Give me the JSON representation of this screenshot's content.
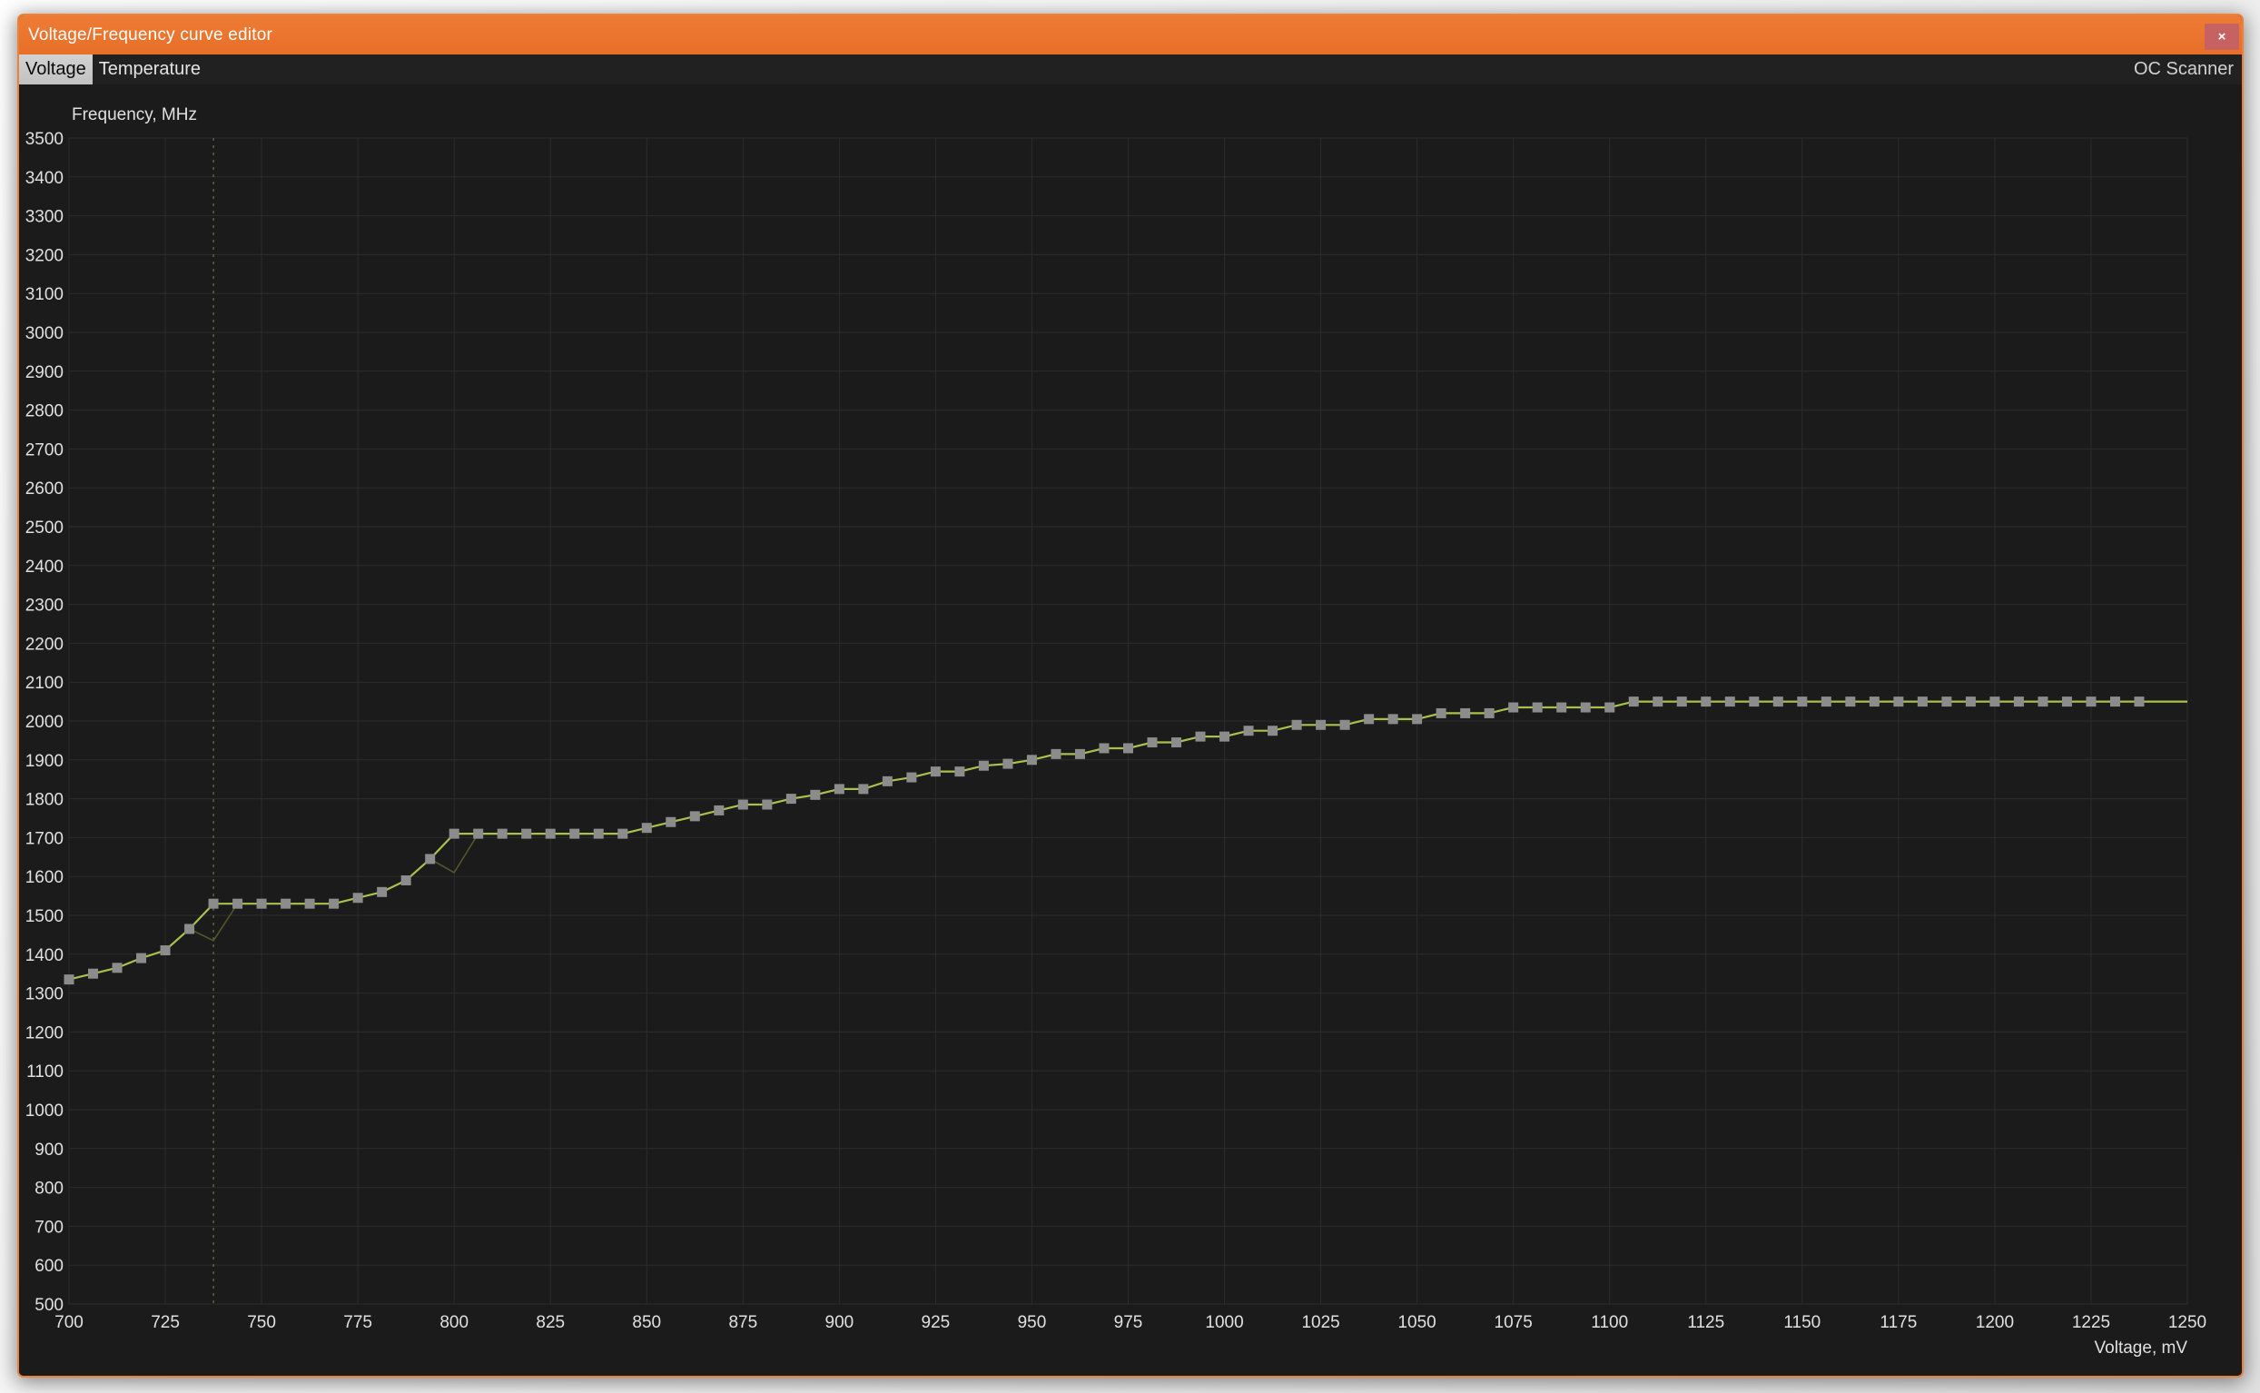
{
  "window": {
    "title": "Voltage/Frequency curve editor",
    "close_glyph": "×"
  },
  "tabs": {
    "items": [
      {
        "label": "Voltage",
        "selected": true
      },
      {
        "label": "Temperature",
        "selected": false
      }
    ],
    "right_label": "OC Scanner"
  },
  "colors": {
    "titlebar": "#e9732f",
    "window_border": "#e8823c",
    "close_button": "#c76262",
    "chart_background": "#1b1b1b",
    "grid": "#2c2c2c",
    "tick_text": "#e0e0e0",
    "curve": "#a6c24c",
    "marker": "#8c8c8c",
    "stock_curve": "#52562a",
    "current_voltage_line": "#6a6d3c",
    "tab_selected_bg": "#cccccc",
    "tabstrip_bg": "#212121"
  },
  "chart_data": {
    "type": "line",
    "xlabel": "Voltage, mV",
    "ylabel": "Frequency, MHz",
    "xlim": [
      700,
      1250
    ],
    "ylim": [
      500,
      3500
    ],
    "x_ticks": [
      700,
      725,
      750,
      775,
      800,
      825,
      850,
      875,
      900,
      925,
      950,
      975,
      1000,
      1025,
      1050,
      1075,
      1100,
      1125,
      1150,
      1175,
      1200,
      1225,
      1250
    ],
    "y_ticks": [
      500,
      600,
      700,
      800,
      900,
      1000,
      1100,
      1200,
      1300,
      1400,
      1500,
      1600,
      1700,
      1800,
      1900,
      2000,
      2100,
      2200,
      2300,
      2400,
      2500,
      2600,
      2700,
      2800,
      2900,
      3000,
      3100,
      3200,
      3300,
      3400,
      3500
    ],
    "grid": true,
    "legend": "none",
    "current_voltage_marker_mV": 737.5,
    "series": [
      {
        "name": "vf_curve",
        "style": "line_with_square_markers",
        "points": [
          [
            700,
            1335
          ],
          [
            706.25,
            1350
          ],
          [
            712.5,
            1365
          ],
          [
            718.75,
            1390
          ],
          [
            725,
            1410
          ],
          [
            731.25,
            1465
          ],
          [
            737.5,
            1530
          ],
          [
            743.75,
            1530
          ],
          [
            750,
            1530
          ],
          [
            756.25,
            1530
          ],
          [
            762.5,
            1530
          ],
          [
            768.75,
            1530
          ],
          [
            775,
            1545
          ],
          [
            781.25,
            1560
          ],
          [
            787.5,
            1590
          ],
          [
            793.75,
            1645
          ],
          [
            800,
            1710
          ],
          [
            806.25,
            1710
          ],
          [
            812.5,
            1710
          ],
          [
            818.75,
            1710
          ],
          [
            825,
            1710
          ],
          [
            831.25,
            1710
          ],
          [
            837.5,
            1710
          ],
          [
            843.75,
            1710
          ],
          [
            850,
            1725
          ],
          [
            856.25,
            1740
          ],
          [
            862.5,
            1755
          ],
          [
            868.75,
            1770
          ],
          [
            875,
            1785
          ],
          [
            881.25,
            1785
          ],
          [
            887.5,
            1800
          ],
          [
            893.75,
            1810
          ],
          [
            900,
            1825
          ],
          [
            906.25,
            1825
          ],
          [
            912.5,
            1845
          ],
          [
            918.75,
            1855
          ],
          [
            925,
            1870
          ],
          [
            931.25,
            1870
          ],
          [
            937.5,
            1885
          ],
          [
            943.75,
            1890
          ],
          [
            950,
            1900
          ],
          [
            956.25,
            1915
          ],
          [
            962.5,
            1915
          ],
          [
            968.75,
            1930
          ],
          [
            975,
            1930
          ],
          [
            981.25,
            1945
          ],
          [
            987.5,
            1945
          ],
          [
            993.75,
            1960
          ],
          [
            1000,
            1960
          ],
          [
            1006.25,
            1975
          ],
          [
            1012.5,
            1975
          ],
          [
            1018.75,
            1990
          ],
          [
            1025,
            1990
          ],
          [
            1031.25,
            1990
          ],
          [
            1037.5,
            2005
          ],
          [
            1043.75,
            2005
          ],
          [
            1050,
            2005
          ],
          [
            1056.25,
            2020
          ],
          [
            1062.5,
            2020
          ],
          [
            1068.75,
            2020
          ],
          [
            1075,
            2035
          ],
          [
            1081.25,
            2035
          ],
          [
            1087.5,
            2035
          ],
          [
            1093.75,
            2035
          ],
          [
            1100,
            2035
          ],
          [
            1106.25,
            2050
          ],
          [
            1112.5,
            2050
          ],
          [
            1118.75,
            2050
          ],
          [
            1125,
            2050
          ],
          [
            1131.25,
            2050
          ],
          [
            1137.5,
            2050
          ],
          [
            1143.75,
            2050
          ],
          [
            1150,
            2050
          ],
          [
            1156.25,
            2050
          ],
          [
            1162.5,
            2050
          ],
          [
            1168.75,
            2050
          ],
          [
            1175,
            2050
          ],
          [
            1181.25,
            2050
          ],
          [
            1187.5,
            2050
          ],
          [
            1193.75,
            2050
          ],
          [
            1200,
            2050
          ],
          [
            1206.25,
            2050
          ],
          [
            1212.5,
            2050
          ],
          [
            1218.75,
            2050
          ],
          [
            1225,
            2050
          ],
          [
            1231.25,
            2050
          ],
          [
            1237.5,
            2050
          ]
        ],
        "tail_point_no_marker": [
          1250,
          2050
        ]
      },
      {
        "name": "stock_curve",
        "style": "line",
        "same_as": "vf_curve",
        "overrides": [
          [
            737.5,
            1435
          ],
          [
            800,
            1610
          ]
        ]
      }
    ]
  }
}
